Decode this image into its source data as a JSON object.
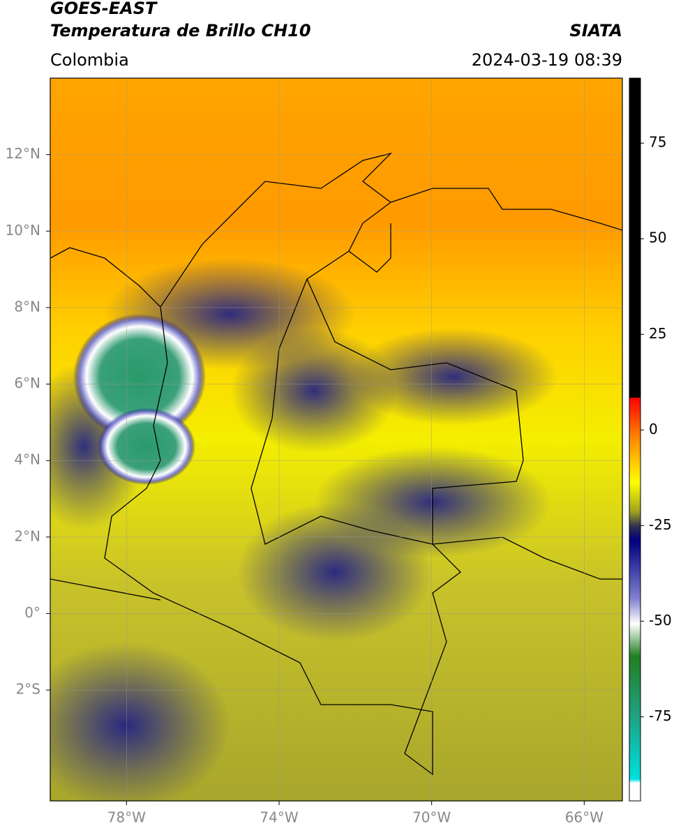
{
  "header": {
    "title": "GOES-EAST",
    "subtitle": "Temperatura de Brillo CH10",
    "source": "SIATA",
    "region": "Colombia",
    "datetime": "2024-03-19 08:39"
  },
  "map": {
    "xlim": [
      -80,
      -65
    ],
    "ylim": [
      -4.9,
      14
    ],
    "xticks": [
      {
        "value": -78,
        "label": "78°W"
      },
      {
        "value": -74,
        "label": "74°W"
      },
      {
        "value": -70,
        "label": "70°W"
      },
      {
        "value": -66,
        "label": "66°W"
      }
    ],
    "yticks": [
      {
        "value": 12,
        "label": "12°N"
      },
      {
        "value": 10,
        "label": "10°N"
      },
      {
        "value": 8,
        "label": "8°N"
      },
      {
        "value": 6,
        "label": "6°N"
      },
      {
        "value": 4,
        "label": "4°N"
      },
      {
        "value": 2,
        "label": "2°N"
      },
      {
        "value": 0,
        "label": "0°"
      },
      {
        "value": -2,
        "label": "2°S"
      }
    ],
    "grid": true
  },
  "colorbar": {
    "lim": [
      -97,
      92
    ],
    "ticks": [
      75,
      50,
      25,
      0,
      -25,
      -50,
      -75
    ]
  }
}
